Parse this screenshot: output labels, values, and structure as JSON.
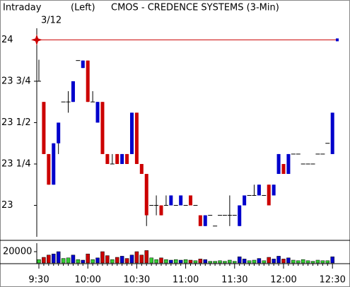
{
  "chart_data": {
    "type": "candlestick",
    "period_label": "Intraday",
    "date_label": "3/12",
    "axis_side_label": "(Left)",
    "title": "CMOS - CREDENCE SYSTEMS (3-Min)",
    "reference_line": 24,
    "reference_color": "#cc0000",
    "up_color": "#0000cc",
    "down_color": "#cc0000",
    "flat_color": "#000000",
    "volume_flat_color": "#33cc33",
    "categories": [
      "9:30",
      null,
      null,
      null,
      null,
      null,
      null,
      null,
      null,
      null,
      "10:00",
      null,
      null,
      null,
      null,
      null,
      null,
      null,
      null,
      null,
      "10:30",
      null,
      null,
      null,
      null,
      null,
      null,
      null,
      null,
      null,
      "11:00",
      null,
      null,
      null,
      null,
      null,
      null,
      null,
      null,
      null,
      "11:30",
      null,
      null,
      null,
      null,
      null,
      null,
      null,
      null,
      null,
      "12:00",
      null,
      null,
      null,
      null,
      null,
      null,
      null,
      null,
      null,
      "12:30"
    ],
    "open": [
      23.75,
      23.625,
      23.31,
      23.125,
      23.375,
      23.625,
      23.625,
      23.625,
      23.875,
      23.83,
      23.875,
      23.625,
      23.5,
      23.625,
      23.31,
      23.25,
      23.31,
      23.25,
      23.31,
      23.31,
      23.56,
      23.25,
      23.19,
      23.0,
      23.0,
      23.0,
      23.0,
      23.0,
      23.0,
      23.0,
      23.0,
      23.06,
      23.0,
      22.94,
      22.875,
      22.94,
      22.875,
      22.94,
      22.94,
      22.94,
      22.94,
      22.875,
      23.0,
      23.06,
      23.06,
      23.06,
      23.06,
      23.125,
      23.06,
      23.19,
      23.25,
      23.19,
      23.31,
      23.31,
      23.25,
      23.25,
      23.25,
      23.31,
      23.31,
      23.375,
      23.31
    ],
    "high": [
      23.88,
      23.625,
      23.31,
      23.375,
      23.5,
      23.625,
      23.69,
      23.75,
      23.875,
      23.875,
      23.875,
      23.69,
      23.625,
      23.625,
      23.31,
      23.31,
      23.31,
      23.31,
      23.31,
      23.56,
      23.56,
      23.25,
      23.19,
      23.0,
      23.06,
      23.0,
      23.06,
      23.06,
      23.0,
      23.06,
      23.0,
      23.06,
      23.0,
      22.94,
      22.94,
      22.94,
      22.875,
      22.94,
      22.94,
      23.06,
      22.94,
      23.0,
      23.06,
      23.06,
      23.125,
      23.125,
      23.06,
      23.125,
      23.125,
      23.31,
      23.25,
      23.31,
      23.31,
      23.31,
      23.25,
      23.25,
      23.25,
      23.31,
      23.31,
      23.375,
      23.56
    ],
    "low": [
      23.75,
      23.31,
      23.125,
      23.125,
      23.31,
      23.625,
      23.56,
      23.625,
      23.875,
      23.83,
      23.625,
      23.625,
      23.5,
      23.31,
      23.25,
      23.25,
      23.25,
      23.25,
      23.25,
      23.31,
      23.25,
      23.19,
      22.875,
      23.0,
      22.94,
      22.94,
      23.0,
      23.0,
      23.0,
      23.0,
      23.0,
      23.0,
      23.0,
      22.875,
      22.875,
      22.94,
      22.875,
      22.94,
      22.94,
      22.875,
      22.94,
      22.875,
      23.0,
      23.06,
      23.06,
      23.06,
      23.06,
      23.0,
      23.06,
      23.19,
      23.19,
      23.19,
      23.31,
      23.31,
      23.25,
      23.25,
      23.25,
      23.31,
      23.31,
      23.375,
      23.31
    ],
    "close": [
      23.75,
      23.31,
      23.125,
      23.375,
      23.5,
      23.625,
      23.625,
      23.75,
      23.875,
      23.875,
      23.625,
      23.625,
      23.625,
      23.31,
      23.25,
      23.25,
      23.25,
      23.31,
      23.25,
      23.56,
      23.25,
      23.19,
      22.94,
      23.0,
      23.0,
      22.94,
      23.0,
      23.06,
      23.0,
      23.06,
      23.0,
      23.0,
      23.0,
      22.875,
      22.94,
      22.94,
      22.875,
      22.94,
      22.94,
      22.94,
      22.94,
      23.0,
      23.06,
      23.06,
      23.06,
      23.125,
      23.06,
      23.0,
      23.125,
      23.31,
      23.19,
      23.31,
      23.31,
      23.31,
      23.25,
      23.25,
      23.25,
      23.31,
      23.31,
      23.375,
      23.56
    ],
    "volume": [
      6000,
      10000,
      14000,
      16000,
      20000,
      8000,
      9000,
      14000,
      6000,
      5000,
      16000,
      6000,
      9000,
      20000,
      13000,
      6000,
      10000,
      12000,
      8000,
      14000,
      20000,
      14000,
      22000,
      9000,
      6000,
      9000,
      6000,
      5000,
      6000,
      5000,
      6000,
      5000,
      4000,
      7000,
      6000,
      3000,
      3000,
      4000,
      3000,
      5000,
      3000,
      11000,
      7000,
      4000,
      5000,
      8000,
      4000,
      10000,
      7000,
      12000,
      7000,
      9000,
      5000,
      4000,
      6000,
      4000,
      3000,
      5000,
      4000,
      4000,
      11000
    ],
    "ylim": [
      22.81,
      24.07
    ],
    "yticks": [
      {
        "value": 23,
        "label": "23"
      },
      {
        "value": 23.25,
        "label": "23 1/4"
      },
      {
        "value": 23.5,
        "label": "23 1/2"
      },
      {
        "value": 23.75,
        "label": "23 3/4"
      },
      {
        "value": 24,
        "label": "24"
      }
    ],
    "volume_ylim": [
      0,
      35000
    ],
    "volume_yticks": [
      20000
    ]
  }
}
